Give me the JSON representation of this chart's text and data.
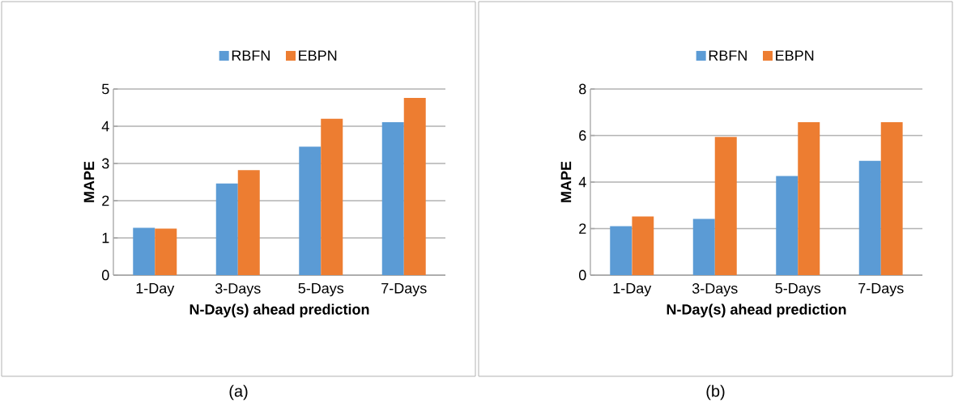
{
  "chart_data": [
    {
      "type": "bar",
      "categories": [
        "1-Day",
        "3-Days",
        "5-Days",
        "7-Days"
      ],
      "xlabel": "N-Day(s) ahead prediction",
      "ylabel": "MAPE",
      "ylim": [
        0,
        5
      ],
      "yticks": [
        0,
        1,
        2,
        3,
        4,
        5
      ],
      "grid": "y",
      "legend": "top",
      "series": [
        {
          "name": "RBFN",
          "color": "#5b9bd5",
          "values": [
            1.27,
            2.46,
            3.45,
            4.11
          ]
        },
        {
          "name": "EBPN",
          "color": "#ed7d31",
          "values": [
            1.25,
            2.82,
            4.2,
            4.76
          ]
        }
      ],
      "annotations": [
        "(a)"
      ]
    },
    {
      "type": "bar",
      "categories": [
        "1-Day",
        "3-Days",
        "5-Days",
        "7-Days"
      ],
      "xlabel": "N-Day(s) ahead prediction",
      "ylabel": "MAPE",
      "ylim": [
        0,
        8
      ],
      "yticks": [
        0,
        2,
        4,
        6,
        8
      ],
      "grid": "y",
      "legend": "top",
      "series": [
        {
          "name": "RBFN",
          "color": "#5b9bd5",
          "values": [
            2.1,
            2.42,
            4.26,
            4.91
          ]
        },
        {
          "name": "EBPN",
          "color": "#ed7d31",
          "values": [
            2.52,
            5.94,
            6.57,
            6.57
          ]
        }
      ],
      "annotations": [
        "(b)"
      ]
    }
  ]
}
